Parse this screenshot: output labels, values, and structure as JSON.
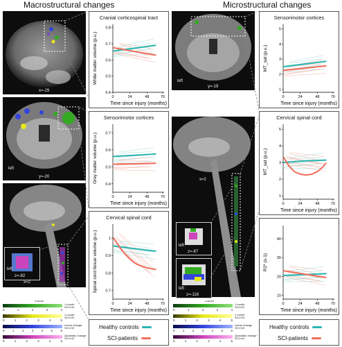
{
  "titles": {
    "macro": "Macrostructural changes",
    "micro": "Microstructural changes"
  },
  "mri_labels": {
    "sag_top": "x=-29",
    "cor_top": "y=-20",
    "cor_left": "left",
    "sag_cord": "x=2",
    "axial_inset": "z=-82",
    "axial_left": "left",
    "micro_cor": "y=-19",
    "micro_cor_left": "left",
    "micro_sag": "x=2",
    "micro_ax1": "z=-87",
    "micro_ax1_left": "left",
    "micro_ax2": "z=-116",
    "micro_ax2_left": "left"
  },
  "colors": {
    "healthy": "#2bb7b0",
    "sci": "#ef6d5b",
    "healthy_faint": "#9fdcd8",
    "sci_faint": "#f6b0a6"
  },
  "colorbar": {
    "title": "z-score",
    "rows": [
      {
        "label": "1 month\nSCI<HC",
        "ticks": [
          "0",
          "1",
          "2",
          "3",
          "4"
        ]
      },
      {
        "label": "1 month\nSCI>HC",
        "ticks": [
          "0",
          "1",
          "2",
          "3",
          "4",
          "5"
        ]
      },
      {
        "label": "Linear change\nSCI>HC",
        "ticks": [
          "0",
          "1",
          "2",
          "3",
          "4",
          "5",
          "6"
        ]
      },
      {
        "label": "Quadratic change\nSCI>HC",
        "ticks": [
          "0",
          "1",
          "2",
          "3",
          "4",
          "5"
        ]
      }
    ]
  },
  "legend": {
    "healthy": "Healthy controls",
    "sci": "SCI-patients"
  },
  "chart_data": [
    {
      "type": "line",
      "title": "Cranial corticospinal tract",
      "xlabel": "Time since injury (months)",
      "ylabel": "White matter volume (p.u.)",
      "xlim": [
        0,
        72
      ],
      "ylim": [
        0.4,
        0.82
      ],
      "xticks": [
        0,
        24,
        48,
        70
      ],
      "yticks": [
        0.4,
        0.5,
        0.6,
        0.7,
        0.8
      ],
      "series": [
        {
          "name": "Healthy controls",
          "x": [
            1,
            60
          ],
          "values": [
            0.655,
            0.69
          ]
        },
        {
          "name": "SCI-patients",
          "x": [
            1,
            60
          ],
          "values": [
            0.675,
            0.63
          ]
        }
      ]
    },
    {
      "type": "line",
      "title": "Sensorimotor cortices",
      "xlabel": "Time since injury (months)",
      "ylabel": "Grey matter volume (p.u.)",
      "xlim": [
        0,
        72
      ],
      "ylim": [
        0.35,
        0.75
      ],
      "xticks": [
        0,
        24,
        48,
        70
      ],
      "yticks": [
        0.4,
        0.5,
        0.6,
        0.7
      ],
      "series": [
        {
          "name": "Healthy controls",
          "x": [
            1,
            60
          ],
          "values": [
            0.56,
            0.575
          ]
        },
        {
          "name": "SCI-patients",
          "x": [
            1,
            60
          ],
          "values": [
            0.515,
            0.52
          ]
        }
      ]
    },
    {
      "type": "line",
      "title": "Cervical spinal cord",
      "xlabel": "Time since injury (months)",
      "ylabel": "Spinal cord tissue volume (p.u.)",
      "xlim": [
        0,
        72
      ],
      "ylim": [
        0.65,
        1.08
      ],
      "xticks": [
        0,
        24,
        48,
        70
      ],
      "yticks": [
        0.7,
        0.8,
        0.9,
        1.0
      ],
      "series": [
        {
          "name": "Healthy controls",
          "x": [
            1,
            10,
            20,
            30,
            40,
            50,
            60
          ],
          "values": [
            0.955,
            0.95,
            0.945,
            0.94,
            0.935,
            0.93,
            0.925
          ]
        },
        {
          "name": "SCI-patients",
          "x": [
            1,
            6,
            12,
            18,
            24,
            30,
            36,
            48,
            60
          ],
          "values": [
            1.0,
            0.97,
            0.935,
            0.905,
            0.88,
            0.86,
            0.845,
            0.83,
            0.82
          ]
        }
      ]
    },
    {
      "type": "line",
      "title": "Sensorimotor cortices",
      "xlabel": "Time since injury (months)",
      "ylabel": "MT_sat (p.u.)",
      "xlim": [
        0,
        72
      ],
      "ylim": [
        0.8,
        5.3
      ],
      "xticks": [
        0,
        24,
        48,
        70
      ],
      "yticks": [
        1,
        2,
        3,
        4,
        5
      ],
      "series": [
        {
          "name": "Healthy controls",
          "x": [
            1,
            60
          ],
          "values": [
            2.5,
            2.85
          ]
        },
        {
          "name": "SCI-patients",
          "x": [
            1,
            60
          ],
          "values": [
            2.25,
            2.55
          ]
        }
      ]
    },
    {
      "type": "line",
      "title": "Cervical spinal cord",
      "xlabel": "Time since injury (months)",
      "ylabel": "MT_sat (p.u.)",
      "xlim": [
        0,
        72
      ],
      "ylim": [
        0.8,
        5.3
      ],
      "xticks": [
        0,
        24,
        48,
        70
      ],
      "yticks": [
        1,
        2,
        3,
        4,
        5
      ],
      "series": [
        {
          "name": "Healthy controls",
          "x": [
            1,
            15,
            30,
            45,
            60
          ],
          "values": [
            3.0,
            3.05,
            3.1,
            3.12,
            3.15
          ]
        },
        {
          "name": "SCI-patients",
          "x": [
            1,
            8,
            16,
            24,
            32,
            40,
            48,
            55,
            60
          ],
          "values": [
            3.3,
            2.8,
            2.45,
            2.3,
            2.25,
            2.3,
            2.45,
            2.7,
            2.95
          ]
        }
      ]
    },
    {
      "type": "line",
      "title": "",
      "xlabel": "Time since injury (months)",
      "ylabel": "R2* (s-1)",
      "xlim": [
        0,
        72
      ],
      "ylim": [
        8,
        47
      ],
      "xticks": [
        0,
        24,
        48,
        70
      ],
      "yticks": [
        10,
        20,
        30,
        40
      ],
      "series": [
        {
          "name": "Healthy controls",
          "x": [
            1,
            60
          ],
          "values": [
            20.5,
            21.5
          ]
        },
        {
          "name": "SCI-patients",
          "x": [
            1,
            60
          ],
          "values": [
            23,
            19.5
          ]
        }
      ]
    }
  ]
}
